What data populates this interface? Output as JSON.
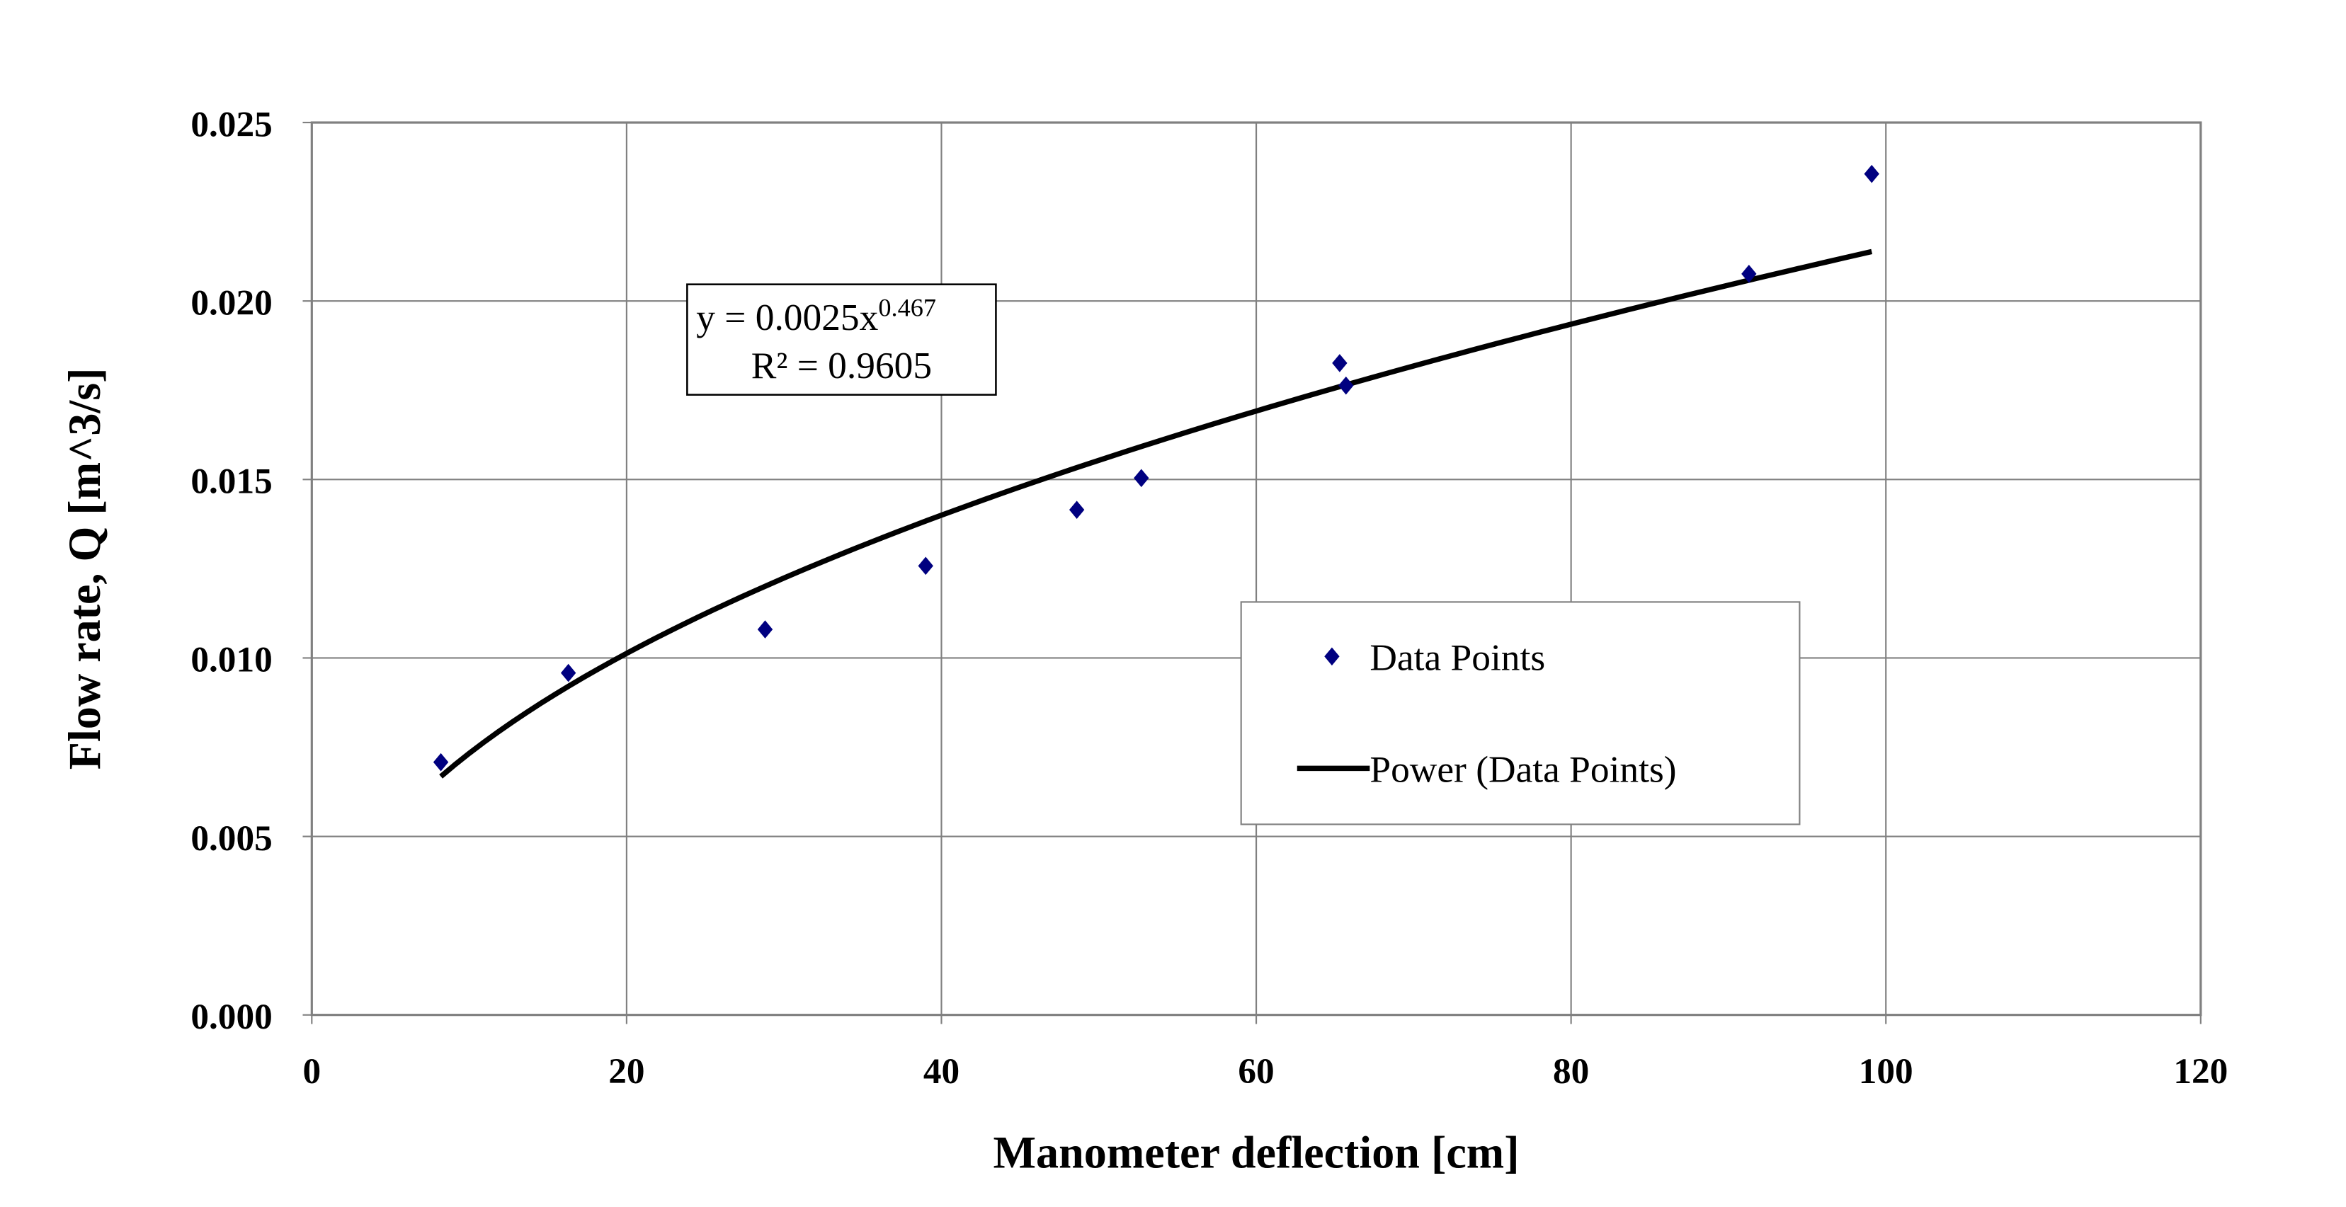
{
  "chart_data": {
    "type": "scatter",
    "xlabel": "Manometer deflection [cm]",
    "ylabel": "Flow rate, Q [m^3/s]",
    "xlim": [
      0,
      120
    ],
    "ylim": [
      0,
      0.025
    ],
    "xticks": [
      "0",
      "20",
      "40",
      "60",
      "80",
      "100",
      "120"
    ],
    "yticks": [
      "0.000",
      "0.005",
      "0.010",
      "0.015",
      "0.020",
      "0.025"
    ],
    "grid": true,
    "legend_position": "center-right",
    "series": [
      {
        "name": "Data Points",
        "color": "#000080",
        "marker": "diamond",
        "points": [
          [
            8.2,
            0.00708
          ],
          [
            16.3,
            0.00958
          ],
          [
            28.8,
            0.0108
          ],
          [
            39.0,
            0.01258
          ],
          [
            48.6,
            0.01415
          ],
          [
            52.7,
            0.01504
          ],
          [
            65.3,
            0.01826
          ],
          [
            65.7,
            0.01763
          ],
          [
            91.3,
            0.02076
          ],
          [
            99.1,
            0.02356
          ]
        ]
      },
      {
        "name": "Power (Data Points)",
        "color": "#000000",
        "type": "trendline",
        "coefficient": 0.0025,
        "exponent": 0.467,
        "x_range": [
          8.2,
          99.1
        ]
      }
    ],
    "annotation": {
      "equation_prefix": "y = 0.0025x",
      "equation_exponent": "0.467",
      "r_squared": "R² = 0.9605"
    }
  }
}
